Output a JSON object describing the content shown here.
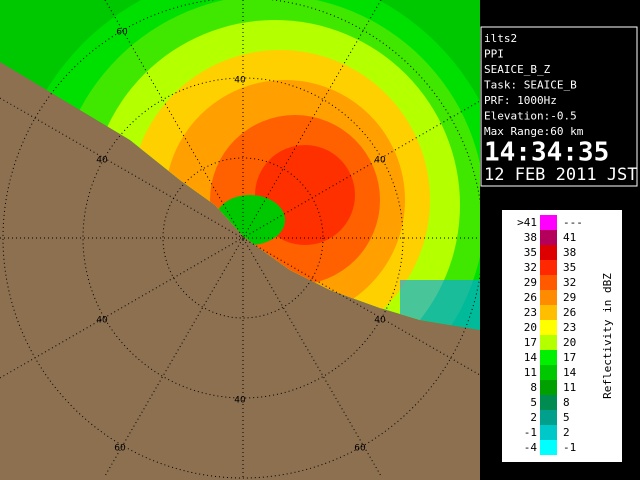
{
  "panel": {
    "lines": [
      "ilts2",
      "PPI",
      "SEAICE_B_Z",
      "Task: SEAICE_B",
      "PRF: 1000Hz",
      "Elevation:-0.5",
      "Max Range:60 km"
    ],
    "time": "14:34:35",
    "date": "12 FEB 2011 JST"
  },
  "legend": {
    "title": "Reflectivity in dBZ",
    "rows": [
      {
        "low": ">41",
        "high": "---",
        "color": "#ff00ff"
      },
      {
        "low": "38",
        "high": "41",
        "color": "#b4005a"
      },
      {
        "low": "35",
        "high": "38",
        "color": "#dc0000"
      },
      {
        "low": "32",
        "high": "35",
        "color": "#ff2800"
      },
      {
        "low": "29",
        "high": "32",
        "color": "#ff5a00"
      },
      {
        "low": "26",
        "high": "29",
        "color": "#ff8c00"
      },
      {
        "low": "23",
        "high": "26",
        "color": "#ffbe00"
      },
      {
        "low": "20",
        "high": "23",
        "color": "#ffff00"
      },
      {
        "low": "17",
        "high": "20",
        "color": "#b4ff00"
      },
      {
        "low": "14",
        "high": "17",
        "color": "#00f000"
      },
      {
        "low": "11",
        "high": "14",
        "color": "#00c800"
      },
      {
        "low": "8",
        "high": "11",
        "color": "#00a000"
      },
      {
        "low": "5",
        "high": "8",
        "color": "#008c50"
      },
      {
        "low": "2",
        "high": "5",
        "color": "#00a08c"
      },
      {
        "low": "-1",
        "high": "2",
        "color": "#00c8c8"
      },
      {
        "low": "-4",
        "high": "-1",
        "color": "#00ffff"
      }
    ]
  },
  "ring_labels": [
    "60",
    "40",
    "40",
    "40",
    "40",
    "40",
    "40",
    "60",
    "60"
  ]
}
